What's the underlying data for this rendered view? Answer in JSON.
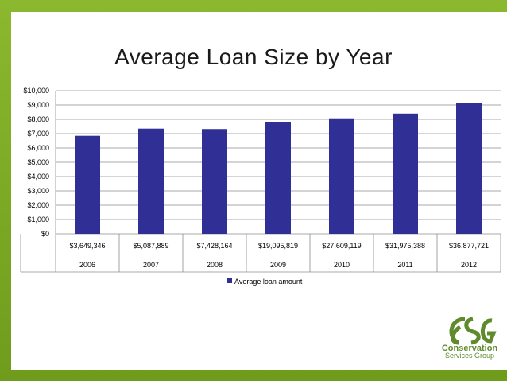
{
  "chart_data": {
    "type": "bar",
    "title": "Average Loan Size by Year",
    "categories": [
      "2006",
      "2007",
      "2008",
      "2009",
      "2010",
      "2011",
      "2012"
    ],
    "table_row": [
      "$3,649,346",
      "$5,087,889",
      "$7,428,164",
      "$19,095,819",
      "$27,609,119",
      "$31,975,388",
      "$36,877,721"
    ],
    "series": [
      {
        "name": "Average loan amount",
        "values": [
          6850,
          7350,
          7320,
          7800,
          8070,
          8400,
          9120
        ],
        "color": "#2f2f96"
      }
    ],
    "yticks": [
      "$0",
      "$1,000",
      "$2,000",
      "$3,000",
      "$4,000",
      "$5,000",
      "$6,000",
      "$7,000",
      "$8,000",
      "$9,000",
      "$10,000"
    ],
    "ylim": [
      0,
      10000
    ],
    "grid": true,
    "legend": "bottom"
  },
  "logo": {
    "line1": "Conservation",
    "line2": "Services Group",
    "color": "#5f8b2d"
  }
}
